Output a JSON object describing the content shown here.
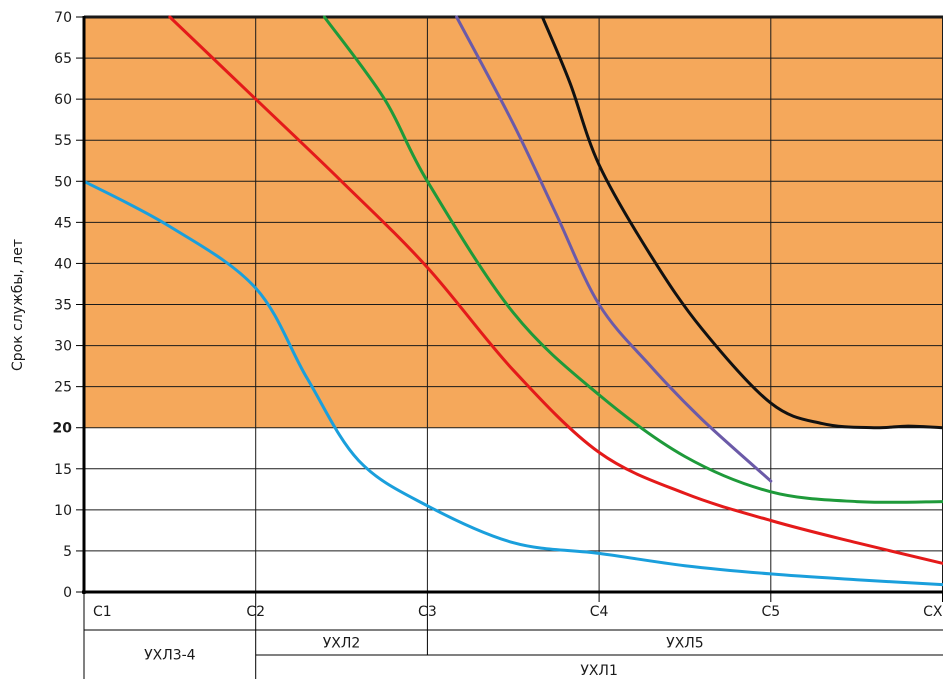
{
  "chart_data": {
    "type": "line",
    "xlabel": "",
    "ylabel": "Срок службы, лет",
    "ylim": [
      0,
      70
    ],
    "yticks": [
      0,
      5,
      10,
      15,
      20,
      25,
      30,
      35,
      40,
      45,
      50,
      55,
      60,
      65,
      70
    ],
    "y_bold_tick": 20,
    "categories": [
      "C1",
      "C2",
      "C3",
      "C4",
      "C5",
      "CX"
    ],
    "shaded_region": {
      "from": 20,
      "to": 70,
      "color": "#f5a85b"
    },
    "grid": true,
    "series": [
      {
        "color": "#1a9fdc",
        "points": [
          [
            0,
            50
          ],
          [
            0.5,
            44.5
          ],
          [
            1,
            37
          ],
          [
            1.3,
            26
          ],
          [
            1.6,
            16
          ],
          [
            2,
            10.5
          ],
          [
            2.5,
            6
          ],
          [
            3,
            4.7
          ],
          [
            3.5,
            3.2
          ],
          [
            4,
            2.2
          ],
          [
            4.5,
            1.5
          ],
          [
            5,
            0.9
          ]
        ]
      },
      {
        "color": "#e41a1a",
        "points": [
          [
            0.5,
            70
          ],
          [
            1,
            60
          ],
          [
            1.5,
            50
          ],
          [
            2,
            39.5
          ],
          [
            2.5,
            27
          ],
          [
            3,
            17
          ],
          [
            3.5,
            12
          ],
          [
            4,
            8.7
          ],
          [
            4.5,
            6
          ],
          [
            5,
            3.5
          ]
        ]
      },
      {
        "color": "#1e9a3a",
        "points": [
          [
            1.4,
            70
          ],
          [
            1.75,
            60
          ],
          [
            2,
            50
          ],
          [
            2.5,
            34
          ],
          [
            3,
            24
          ],
          [
            3.5,
            16.5
          ],
          [
            4,
            12.2
          ],
          [
            4.5,
            11
          ],
          [
            5,
            11
          ]
        ]
      },
      {
        "color": "#6b5aa8",
        "points": [
          [
            2.17,
            70
          ],
          [
            2.5,
            57
          ],
          [
            2.75,
            46
          ],
          [
            3,
            35
          ],
          [
            3.3,
            27.5
          ],
          [
            3.6,
            21
          ],
          [
            4,
            13.5
          ]
        ]
      },
      {
        "color": "#111111",
        "points": [
          [
            2.67,
            70
          ],
          [
            2.83,
            62
          ],
          [
            3,
            52
          ],
          [
            3.3,
            41
          ],
          [
            3.6,
            32
          ],
          [
            4,
            23
          ],
          [
            4.3,
            20.5
          ],
          [
            4.6,
            20
          ],
          [
            4.8,
            20.2
          ],
          [
            5,
            20
          ]
        ]
      }
    ],
    "climate_classes": [
      {
        "label": "УХЛ3-4",
        "from": 0,
        "to": 1,
        "row": "both"
      },
      {
        "label": "УХЛ2",
        "from": 1,
        "to": 2,
        "row": "top"
      },
      {
        "label": "УХЛ5",
        "from": 2,
        "to": 5,
        "row": "top"
      },
      {
        "label": "УХЛ1",
        "from": 1,
        "to": 5,
        "row": "bottom"
      }
    ]
  }
}
